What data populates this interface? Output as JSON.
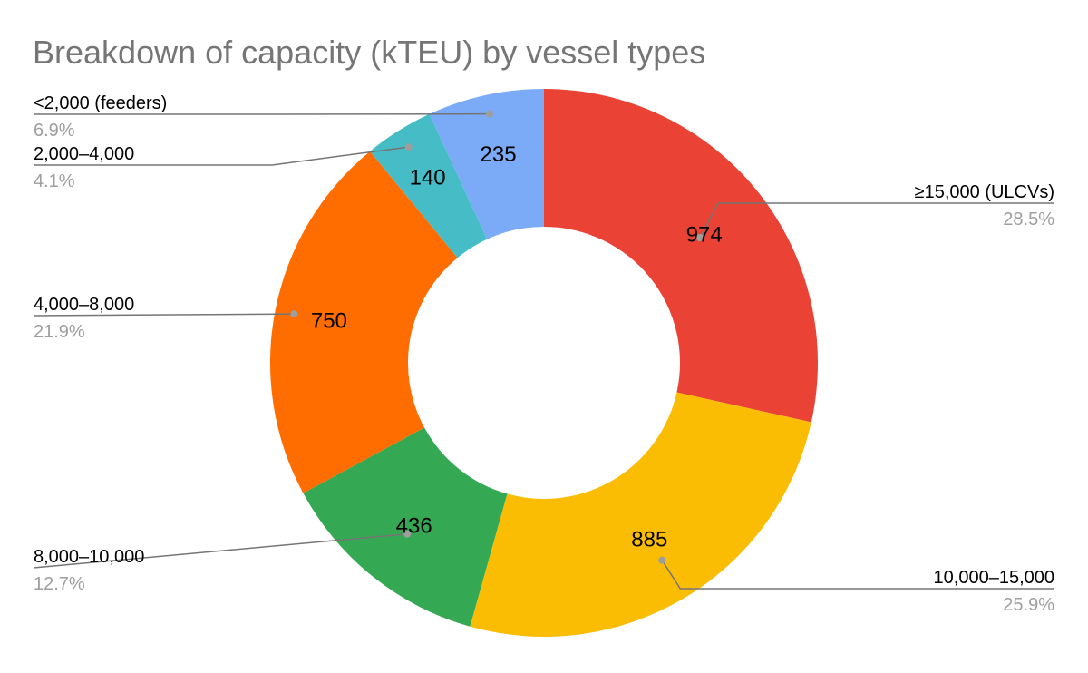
{
  "chart_data": {
    "type": "pie",
    "donut": true,
    "title": "Breakdown of capacity (kTEU) by vessel types",
    "slices": [
      {
        "label": "≥15,000 (ULCVs)",
        "value": 974,
        "percent": "28.5%",
        "color": "#ea4335"
      },
      {
        "label": "10,000–15,000",
        "value": 885,
        "percent": "25.9%",
        "color": "#fbbc04"
      },
      {
        "label": "8,000–10,000",
        "value": 436,
        "percent": "12.7%",
        "color": "#34a853"
      },
      {
        "label": "4,000–8,000",
        "value": 750,
        "percent": "21.9%",
        "color": "#ff6d01"
      },
      {
        "label": "2,000–4,000",
        "value": 140,
        "percent": "4.1%",
        "color": "#46bdc6"
      },
      {
        "label": "<2,000 (feeders)",
        "value": 235,
        "percent": "6.9%",
        "color": "#7baaf7"
      }
    ],
    "legend": "none",
    "label_style": "outside labels with leader lines; values inside slices"
  }
}
